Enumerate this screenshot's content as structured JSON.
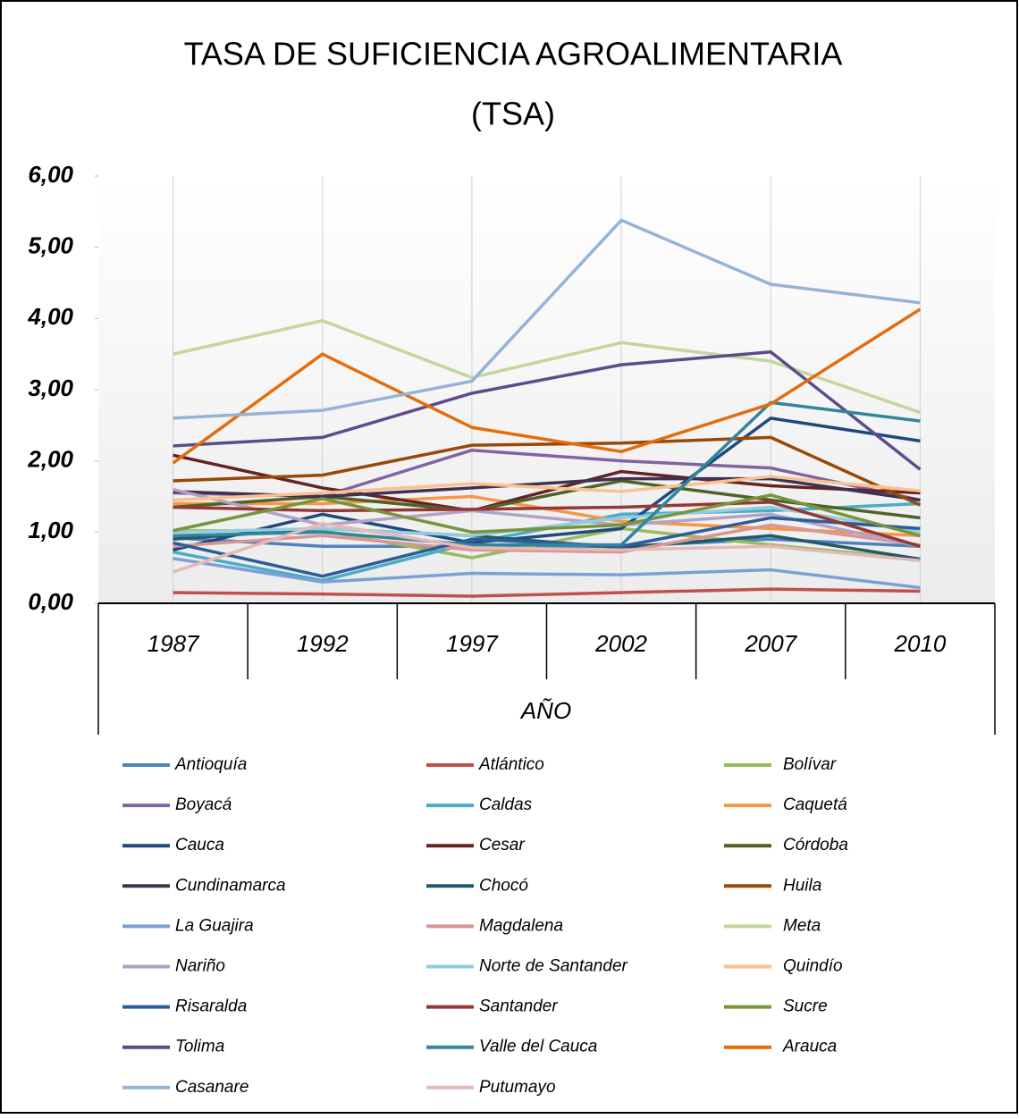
{
  "chart_data": {
    "type": "line",
    "title": "TASA DE SUFICIENCIA AGROALIMENTARIA",
    "subtitle": "(TSA)",
    "x_label": "AÑO",
    "categories": [
      "1987",
      "1992",
      "1997",
      "2002",
      "2007",
      "2010"
    ],
    "ylim": [
      0,
      6
    ],
    "yticks": [
      {
        "value": 0,
        "label": "0,00"
      },
      {
        "value": 1,
        "label": "1,00"
      },
      {
        "value": 2,
        "label": "2,00"
      },
      {
        "value": 3,
        "label": "3,00"
      },
      {
        "value": 4,
        "label": "4,00"
      },
      {
        "value": 5,
        "label": "5,00"
      },
      {
        "value": 6,
        "label": "6,00"
      }
    ],
    "grid": true,
    "series": [
      {
        "name": "Antioquía",
        "color": "#4f81bd",
        "values": [
          0.92,
          0.8,
          0.8,
          0.8,
          0.9,
          0.8
        ]
      },
      {
        "name": "Atlántico",
        "color": "#c0504d",
        "values": [
          0.15,
          0.13,
          0.1,
          0.15,
          0.2,
          0.17
        ]
      },
      {
        "name": "Bolívar",
        "color": "#9bbb59",
        "values": [
          1.02,
          1.02,
          0.64,
          1.05,
          0.82,
          0.62
        ]
      },
      {
        "name": "Boyacá",
        "color": "#8064a2",
        "values": [
          1.55,
          1.5,
          2.15,
          2.0,
          1.9,
          1.45
        ]
      },
      {
        "name": "Caldas",
        "color": "#4bacc6",
        "values": [
          0.72,
          0.32,
          0.85,
          1.25,
          1.3,
          1.4
        ]
      },
      {
        "name": "Caquetá",
        "color": "#f79646",
        "values": [
          1.4,
          1.4,
          1.5,
          1.15,
          1.05,
          0.95
        ]
      },
      {
        "name": "Cauca",
        "color": "#1f497d",
        "values": [
          0.75,
          1.25,
          0.85,
          1.05,
          2.6,
          2.28
        ]
      },
      {
        "name": "Cesar",
        "color": "#632523",
        "values": [
          2.08,
          1.62,
          1.3,
          1.85,
          1.65,
          1.55
        ]
      },
      {
        "name": "Córdoba",
        "color": "#4f6228",
        "values": [
          1.35,
          1.5,
          1.3,
          1.72,
          1.45,
          1.2
        ]
      },
      {
        "name": "Cundinamarca",
        "color": "#403152",
        "values": [
          1.57,
          1.5,
          1.62,
          1.75,
          1.75,
          1.45
        ]
      },
      {
        "name": "Chocó",
        "color": "#215968",
        "values": [
          0.9,
          1.05,
          0.95,
          0.78,
          0.95,
          0.62
        ]
      },
      {
        "name": "Huila",
        "color": "#984807",
        "values": [
          1.72,
          1.8,
          2.22,
          2.25,
          2.33,
          1.38
        ]
      },
      {
        "name": "La Guajira",
        "color": "#7ba0d4",
        "values": [
          0.63,
          0.3,
          0.42,
          0.4,
          0.47,
          0.22
        ]
      },
      {
        "name": "Magdalena",
        "color": "#d99694",
        "values": [
          0.8,
          0.95,
          0.75,
          0.72,
          1.1,
          0.82
        ]
      },
      {
        "name": "Meta",
        "color": "#c3d69b",
        "values": [
          3.5,
          3.97,
          3.17,
          3.66,
          3.4,
          2.68
        ]
      },
      {
        "name": "Nariño",
        "color": "#b3a2c7",
        "values": [
          1.6,
          1.1,
          1.3,
          1.1,
          1.25,
          0.8
        ]
      },
      {
        "name": "Norte de Santander",
        "color": "#93cddd",
        "values": [
          1.0,
          1.05,
          0.95,
          1.2,
          1.35,
          1.0
        ]
      },
      {
        "name": "Quindío",
        "color": "#fac090",
        "values": [
          1.45,
          1.55,
          1.68,
          1.57,
          1.78,
          1.58
        ]
      },
      {
        "name": "Risaralda",
        "color": "#2c5d9a",
        "values": [
          0.85,
          0.38,
          0.9,
          0.8,
          1.2,
          1.05
        ]
      },
      {
        "name": "Santander",
        "color": "#953735",
        "values": [
          1.35,
          1.3,
          1.32,
          1.35,
          1.42,
          0.8
        ]
      },
      {
        "name": "Sucre",
        "color": "#77933c",
        "values": [
          1.02,
          1.47,
          1.0,
          1.1,
          1.52,
          0.95
        ]
      },
      {
        "name": "Tolima",
        "color": "#5f4b8b",
        "values": [
          2.21,
          2.33,
          2.95,
          3.35,
          3.53,
          1.88
        ]
      },
      {
        "name": "Valle del Cauca",
        "color": "#31859c",
        "values": [
          0.95,
          1.0,
          0.82,
          0.82,
          2.82,
          2.56
        ]
      },
      {
        "name": "Arauca",
        "color": "#e46c0a",
        "values": [
          1.97,
          3.5,
          2.47,
          2.13,
          2.8,
          4.13
        ]
      },
      {
        "name": "Casanare",
        "color": "#95b3d7",
        "values": [
          2.6,
          2.71,
          3.12,
          5.38,
          4.48,
          4.22
        ]
      },
      {
        "name": "Putumayo",
        "color": "#e6b9b8",
        "values": [
          0.44,
          1.12,
          0.78,
          0.75,
          0.8,
          0.6
        ]
      }
    ]
  }
}
